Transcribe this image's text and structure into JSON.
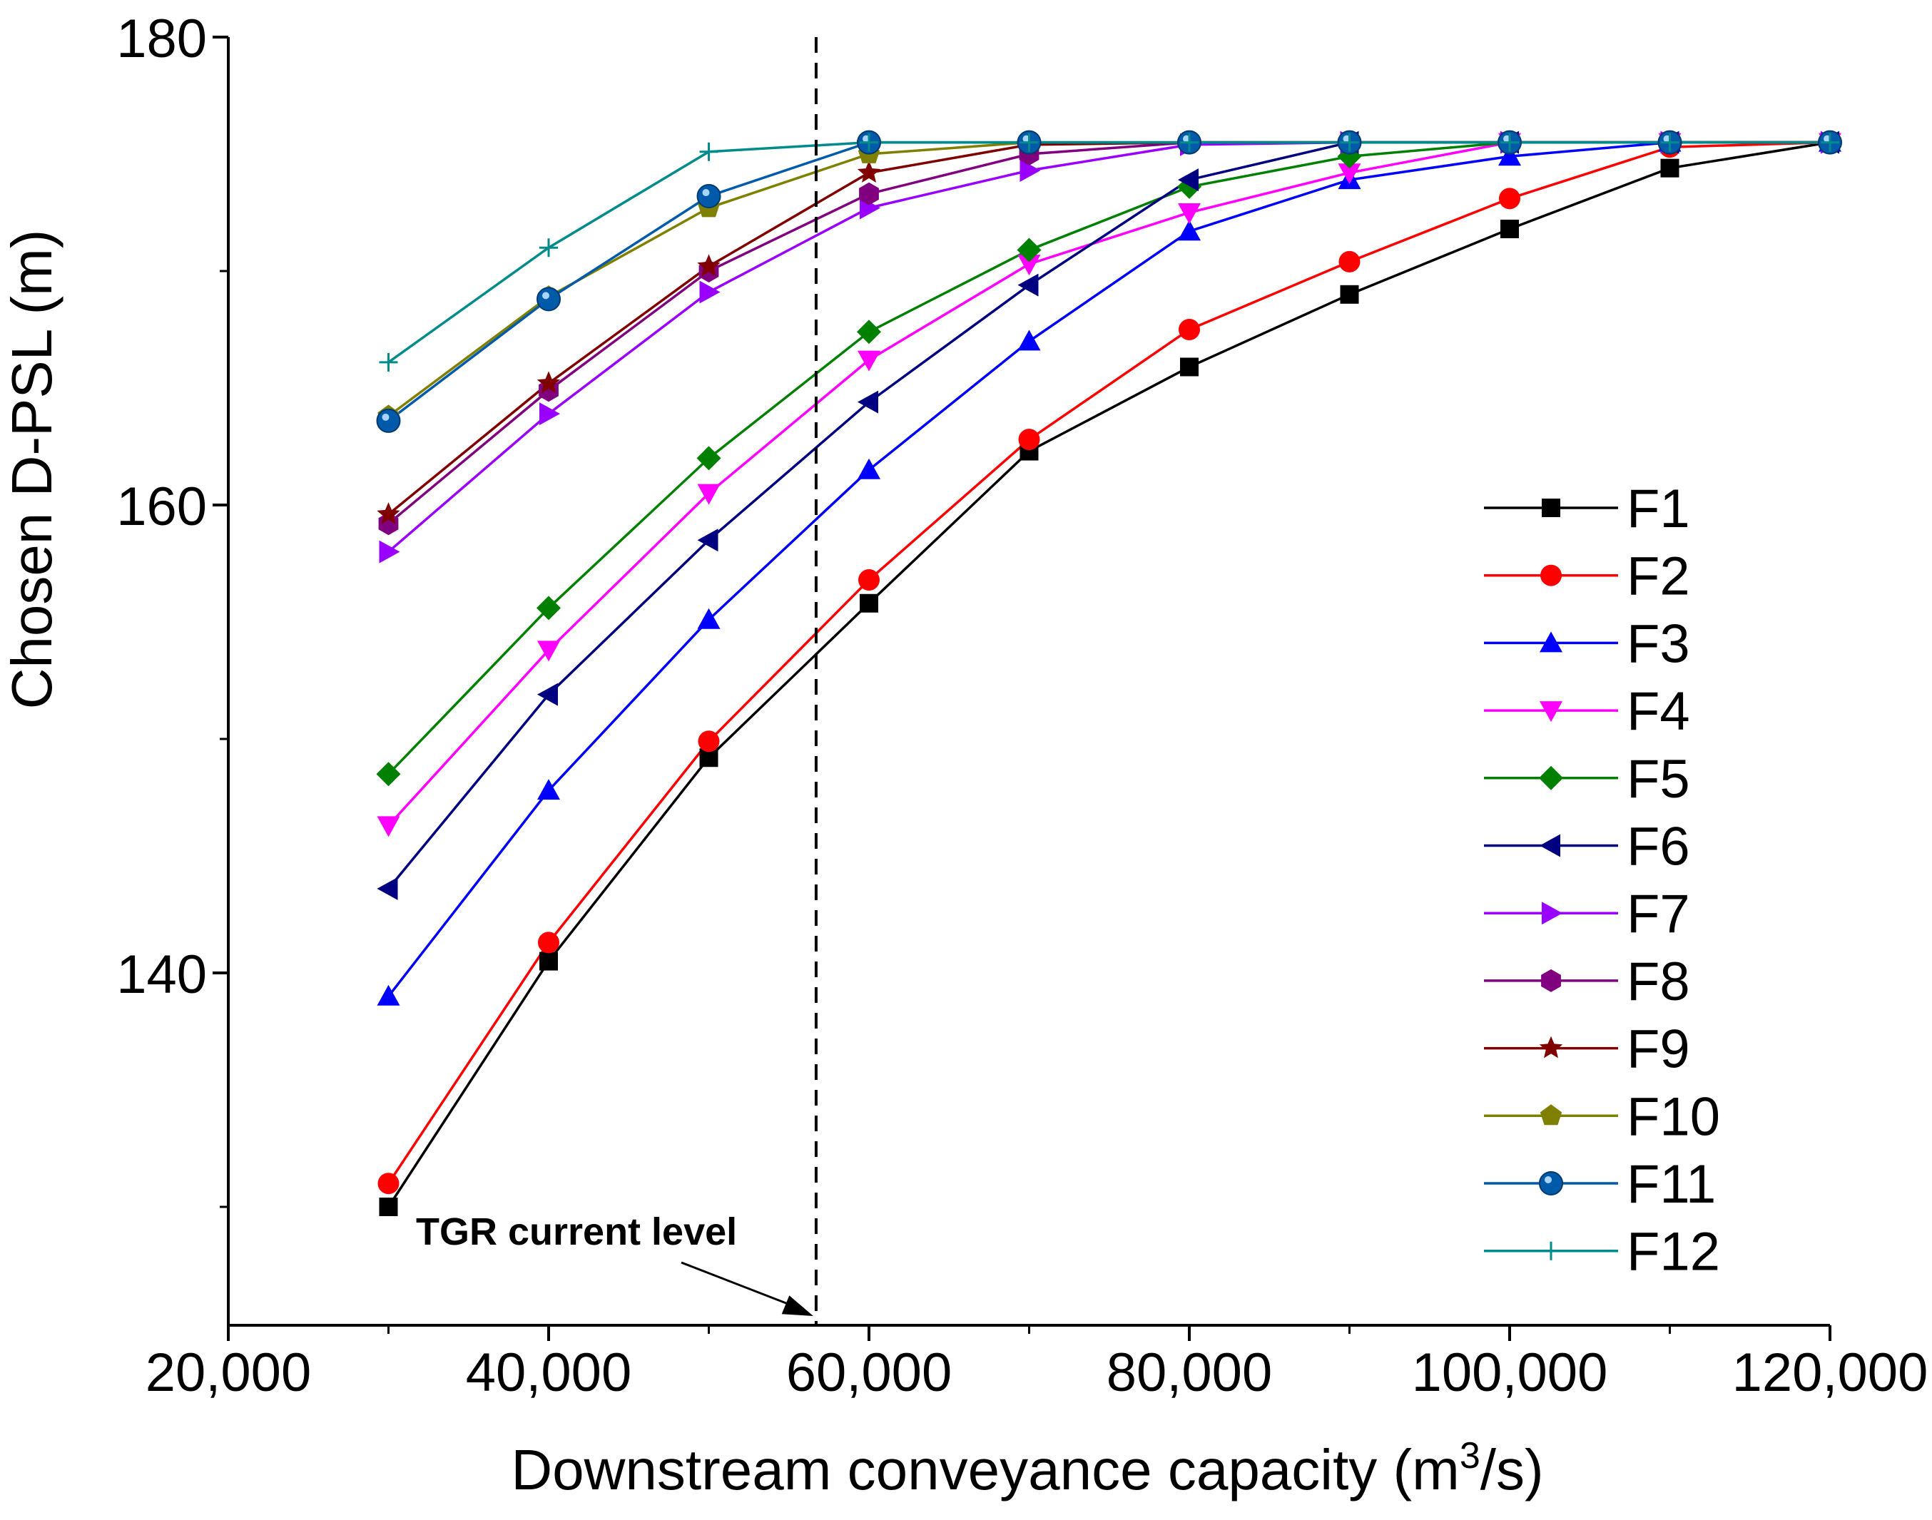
{
  "chart_data": {
    "type": "line",
    "title": "",
    "xlabel": "Downstream conveyance capacity  (m³/s)",
    "xlabel_parts": {
      "main": "Downstream conveyance capacity  (m",
      "sup": "3",
      "tail": "/s)"
    },
    "ylabel": "Chosen D-PSL  (m)",
    "xlim": [
      20000,
      120000
    ],
    "ylim": [
      125,
      180
    ],
    "x_ticks": [
      20000,
      40000,
      60000,
      80000,
      100000,
      120000
    ],
    "x_tick_labels": [
      "20,000",
      "40,000",
      "60,000",
      "80,000",
      "100,000",
      "120,000"
    ],
    "y_ticks": [
      140,
      160,
      180
    ],
    "y_tick_labels": [
      "140",
      "160",
      "180"
    ],
    "x": [
      30000,
      40000,
      50000,
      60000,
      70000,
      80000,
      90000,
      100000,
      110000,
      120000
    ],
    "series": [
      {
        "name": "F1",
        "color": "#000000",
        "marker": "square",
        "values": [
          130.0,
          140.5,
          149.2,
          155.8,
          162.3,
          165.9,
          169.0,
          171.8,
          174.4,
          175.5
        ]
      },
      {
        "name": "F2",
        "color": "#ff0000",
        "marker": "circle",
        "values": [
          131.0,
          141.3,
          149.9,
          156.8,
          162.8,
          167.5,
          170.4,
          173.1,
          175.3,
          175.5
        ]
      },
      {
        "name": "F3",
        "color": "#0000ff",
        "marker": "triangle-up",
        "values": [
          139.0,
          147.8,
          155.1,
          161.5,
          167.0,
          171.7,
          173.9,
          174.9,
          175.5,
          175.5
        ]
      },
      {
        "name": "F4",
        "color": "#ff00ff",
        "marker": "triangle-down",
        "values": [
          146.3,
          153.8,
          160.5,
          166.2,
          170.3,
          172.5,
          174.2,
          175.5,
          175.5,
          175.5
        ]
      },
      {
        "name": "F5",
        "color": "#008000",
        "marker": "diamond",
        "values": [
          148.5,
          155.6,
          162.0,
          167.4,
          170.9,
          173.6,
          174.9,
          175.5,
          175.5,
          175.5
        ]
      },
      {
        "name": "F6",
        "color": "#000080",
        "marker": "triangle-left",
        "values": [
          143.6,
          151.9,
          158.5,
          164.4,
          169.4,
          173.9,
          175.5,
          175.5,
          175.5,
          175.5
        ]
      },
      {
        "name": "F7",
        "color": "#9900ff",
        "marker": "triangle-right",
        "values": [
          158.0,
          163.9,
          169.1,
          172.7,
          174.3,
          175.4,
          175.5,
          175.5,
          175.5,
          175.5
        ]
      },
      {
        "name": "F8",
        "color": "#800080",
        "marker": "hexagon",
        "values": [
          159.2,
          164.9,
          170.0,
          173.3,
          175.0,
          175.5,
          175.5,
          175.5,
          175.5,
          175.5
        ]
      },
      {
        "name": "F9",
        "color": "#800000",
        "marker": "star",
        "values": [
          159.6,
          165.2,
          170.2,
          174.2,
          175.4,
          175.5,
          175.5,
          175.5,
          175.5,
          175.5
        ]
      },
      {
        "name": "F10",
        "color": "#808000",
        "marker": "pentagon",
        "values": [
          163.8,
          168.9,
          172.7,
          175.0,
          175.5,
          175.5,
          175.5,
          175.5,
          175.5,
          175.5
        ]
      },
      {
        "name": "F11",
        "color": "#005aaa",
        "marker": "ball",
        "values": [
          163.6,
          168.8,
          173.2,
          175.5,
          175.5,
          175.5,
          175.5,
          175.5,
          175.5,
          175.5
        ]
      },
      {
        "name": "F12",
        "color": "#008b8b",
        "marker": "plus",
        "values": [
          166.1,
          171.0,
          175.1,
          175.5,
          175.5,
          175.5,
          175.5,
          175.5,
          175.5,
          175.5
        ]
      }
    ],
    "annotation": {
      "text": "TGR current level",
      "x": 56700
    },
    "legend_position": "right"
  }
}
